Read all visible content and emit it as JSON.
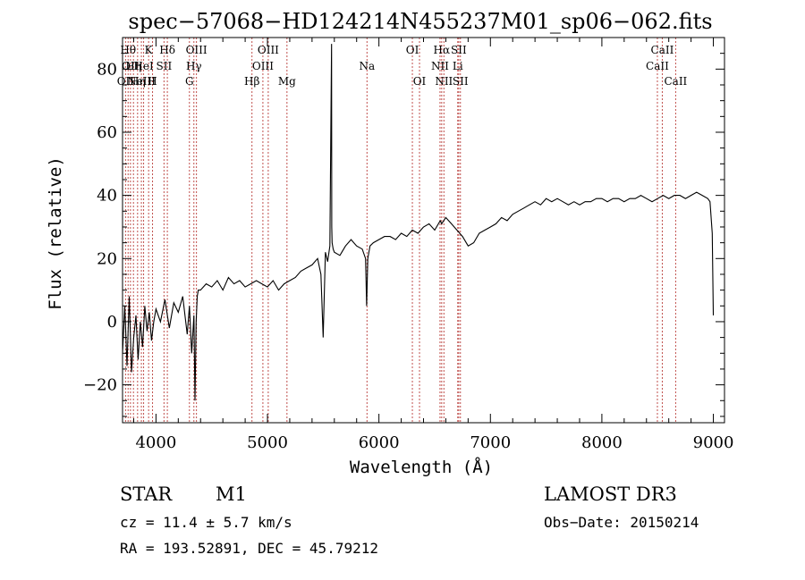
{
  "chart_data": {
    "type": "line",
    "title": "spec−57068−HD124214N455237M01_sp06−062.fits",
    "xlabel": "Wavelength (Å)",
    "ylabel": "Flux (relative)",
    "xlim": [
      3700,
      9100
    ],
    "ylim": [
      -32,
      90
    ],
    "x_ticks": [
      4000,
      5000,
      6000,
      7000,
      8000,
      9000
    ],
    "x_tick_labels": [
      "4000",
      "5000",
      "6000",
      "7000",
      "8000",
      "9000"
    ],
    "y_ticks": [
      -20,
      0,
      20,
      40,
      60,
      80
    ],
    "y_tick_labels": [
      "−20",
      "0",
      "20",
      "40",
      "60",
      "80"
    ],
    "grid": false,
    "series": [
      {
        "color": "#000000",
        "x": [
          3700,
          3720,
          3740,
          3760,
          3780,
          3800,
          3820,
          3840,
          3860,
          3880,
          3900,
          3920,
          3940,
          3960,
          3980,
          4000,
          4040,
          4080,
          4120,
          4160,
          4200,
          4240,
          4280,
          4300,
          4320,
          4340,
          4350,
          4360,
          4370,
          4380,
          4400,
          4450,
          4500,
          4550,
          4600,
          4650,
          4700,
          4750,
          4800,
          4850,
          4900,
          4950,
          5000,
          5050,
          5100,
          5150,
          5200,
          5250,
          5300,
          5350,
          5400,
          5450,
          5480,
          5500,
          5520,
          5540,
          5560,
          5575,
          5577,
          5580,
          5590,
          5600,
          5650,
          5700,
          5750,
          5800,
          5850,
          5880,
          5890,
          5900,
          5920,
          5950,
          6000,
          6050,
          6100,
          6150,
          6200,
          6250,
          6300,
          6350,
          6400,
          6450,
          6500,
          6550,
          6563,
          6600,
          6650,
          6700,
          6750,
          6800,
          6850,
          6900,
          6950,
          7000,
          7050,
          7100,
          7150,
          7200,
          7250,
          7300,
          7350,
          7400,
          7450,
          7500,
          7550,
          7600,
          7650,
          7700,
          7750,
          7800,
          7850,
          7900,
          7950,
          8000,
          8050,
          8100,
          8150,
          8200,
          8250,
          8300,
          8350,
          8400,
          8450,
          8500,
          8550,
          8600,
          8650,
          8700,
          8750,
          8800,
          8850,
          8900,
          8950,
          8970,
          8990,
          9000
        ],
        "y": [
          -10,
          5,
          -14,
          8,
          -16,
          -5,
          2,
          -12,
          0,
          -8,
          5,
          -3,
          3,
          -6,
          0,
          4,
          0,
          7,
          -2,
          6,
          3,
          8,
          -4,
          5,
          -10,
          2,
          -25,
          0,
          8,
          10,
          10,
          12,
          11,
          13,
          10,
          14,
          12,
          13,
          11,
          12,
          13,
          12,
          11,
          13,
          10,
          12,
          13,
          14,
          16,
          17,
          18,
          20,
          15,
          -5,
          22,
          19,
          24,
          88,
          30,
          25,
          23,
          22,
          21,
          24,
          26,
          24,
          23,
          20,
          5,
          20,
          24,
          25,
          26,
          27,
          27,
          26,
          28,
          27,
          29,
          28,
          30,
          31,
          29,
          32,
          31,
          33,
          31,
          29,
          27,
          24,
          25,
          28,
          29,
          30,
          31,
          33,
          32,
          34,
          35,
          36,
          37,
          38,
          37,
          39,
          38,
          39,
          38,
          37,
          38,
          37,
          38,
          38,
          39,
          39,
          38,
          39,
          39,
          38,
          39,
          39,
          40,
          39,
          38,
          39,
          40,
          39,
          40,
          40,
          39,
          40,
          41,
          40,
          39,
          38,
          28,
          2
        ]
      }
    ],
    "line_labels": [
      {
        "x": 3727,
        "row": 3,
        "text": "OII"
      },
      {
        "x": 3750,
        "row": 1,
        "text": "Hθ"
      },
      {
        "x": 3771,
        "row": 2,
        "text": "OII"
      },
      {
        "x": 3798,
        "row": 2,
        "text": "Hη"
      },
      {
        "x": 3835,
        "row": 3,
        "text": "Hη"
      },
      {
        "x": 3869,
        "row": 3,
        "text": "NeIII"
      },
      {
        "x": 3889,
        "row": 2,
        "text": "HeI"
      },
      {
        "x": 3934,
        "row": 1,
        "text": "K"
      },
      {
        "x": 3969,
        "row": 3,
        "text": "H"
      },
      {
        "x": 4072,
        "row": 2,
        "text": "SII"
      },
      {
        "x": 4102,
        "row": 1,
        "text": "Hδ"
      },
      {
        "x": 4300,
        "row": 3,
        "text": "G"
      },
      {
        "x": 4340,
        "row": 2,
        "text": "Hγ"
      },
      {
        "x": 4363,
        "row": 1,
        "text": "OIII"
      },
      {
        "x": 4861,
        "row": 3,
        "text": "Hβ"
      },
      {
        "x": 4959,
        "row": 2,
        "text": "OIII"
      },
      {
        "x": 5007,
        "row": 1,
        "text": "OIII"
      },
      {
        "x": 5175,
        "row": 3,
        "text": "Mg"
      },
      {
        "x": 5893,
        "row": 2,
        "text": "Na"
      },
      {
        "x": 6300,
        "row": 1,
        "text": "OI"
      },
      {
        "x": 6364,
        "row": 3,
        "text": "OI"
      },
      {
        "x": 6548,
        "row": 2,
        "text": "NII"
      },
      {
        "x": 6563,
        "row": 1,
        "text": "Hα"
      },
      {
        "x": 6583,
        "row": 3,
        "text": "NII"
      },
      {
        "x": 6707,
        "row": 2,
        "text": "Li"
      },
      {
        "x": 6716,
        "row": 1,
        "text": "SII"
      },
      {
        "x": 6731,
        "row": 3,
        "text": "SII"
      },
      {
        "x": 8498,
        "row": 2,
        "text": "CaII"
      },
      {
        "x": 8542,
        "row": 1,
        "text": "CaII"
      },
      {
        "x": 8662,
        "row": 3,
        "text": "CaII"
      }
    ],
    "line_color": "#c0504d"
  },
  "info": {
    "class": "STAR",
    "subclass": "M1",
    "survey": "LAMOST DR3",
    "cz": "cz = 11.4 ± 5.7 km/s",
    "obs_date": "Obs−Date: 20150214",
    "radec": "RA = 193.52891, DEC =  45.79212"
  }
}
